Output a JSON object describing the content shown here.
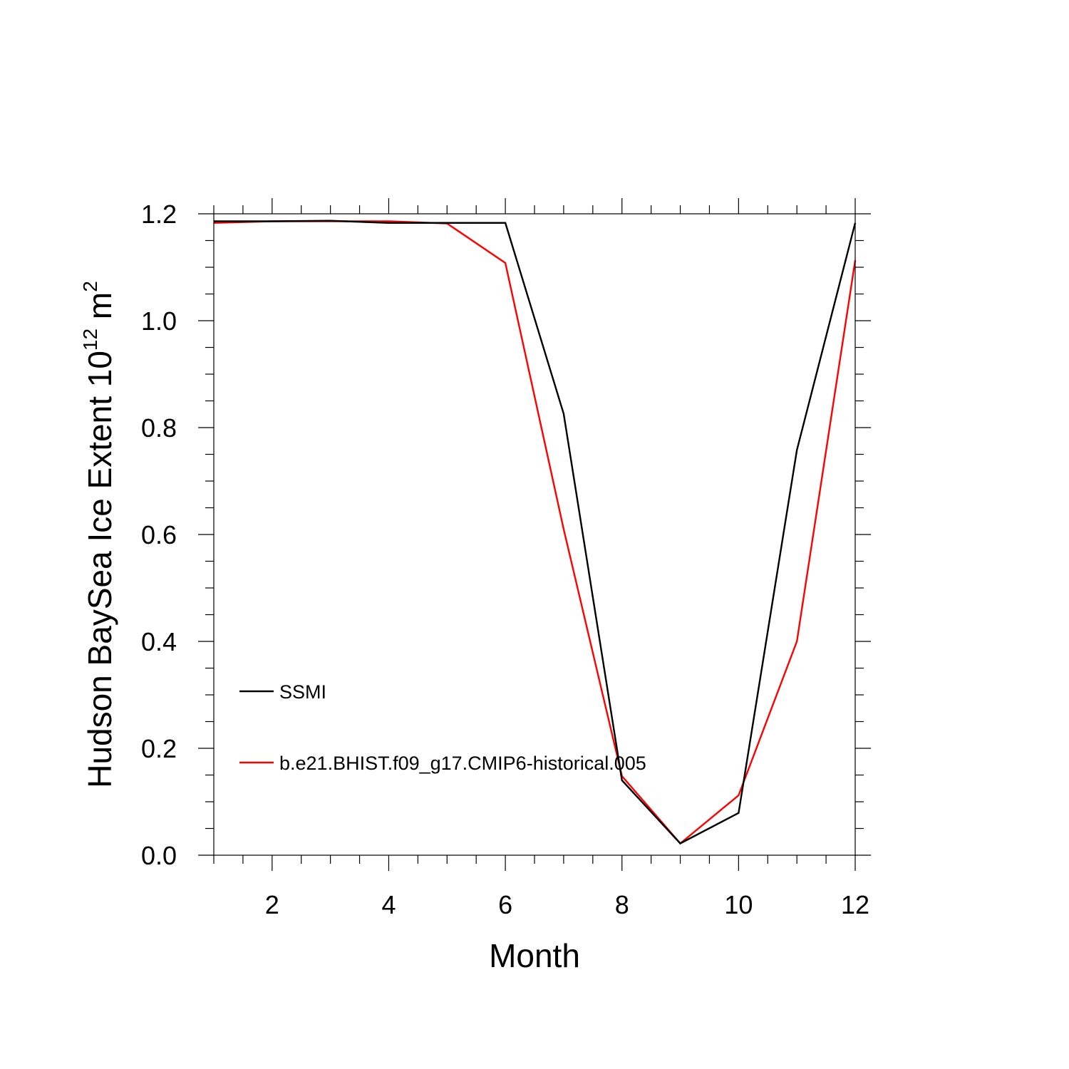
{
  "chart_data": {
    "type": "line",
    "xlabel": "Month",
    "ylabel": {
      "text": "Hudson BaySea Ice Extent 10",
      "superscript_1": "12",
      "unit": " m",
      "superscript_2": "2"
    },
    "xlim": [
      1,
      12
    ],
    "ylim": [
      0,
      1.2
    ],
    "x_ticks": [
      2,
      4,
      6,
      8,
      10,
      12
    ],
    "x_tick_labels": [
      "2",
      "4",
      "6",
      "8",
      "10",
      "12"
    ],
    "y_ticks": [
      0,
      0.2,
      0.4,
      0.6,
      0.8,
      1.0,
      1.2
    ],
    "y_tick_labels": [
      "0.0",
      "0.2",
      "0.4",
      "0.6",
      "0.8",
      "1.0",
      "1.2"
    ],
    "grid": false,
    "legend_position": "lower-left inside plot",
    "x": [
      1,
      2,
      3,
      4,
      5,
      6,
      7,
      8,
      9,
      10,
      11,
      12
    ],
    "series": [
      {
        "name": "SSMI",
        "color": "#000000",
        "values": [
          1.186,
          1.186,
          1.187,
          1.183,
          1.183,
          1.183,
          0.826,
          0.14,
          0.022,
          0.079,
          0.758,
          1.183
        ]
      },
      {
        "name": "b.e21.BHIST.f09_g17.CMIP6-historical.005",
        "color": "#ff0000",
        "values": [
          1.183,
          1.186,
          1.186,
          1.186,
          1.182,
          1.108,
          0.61,
          0.148,
          0.022,
          0.112,
          0.4,
          1.113
        ]
      }
    ]
  }
}
